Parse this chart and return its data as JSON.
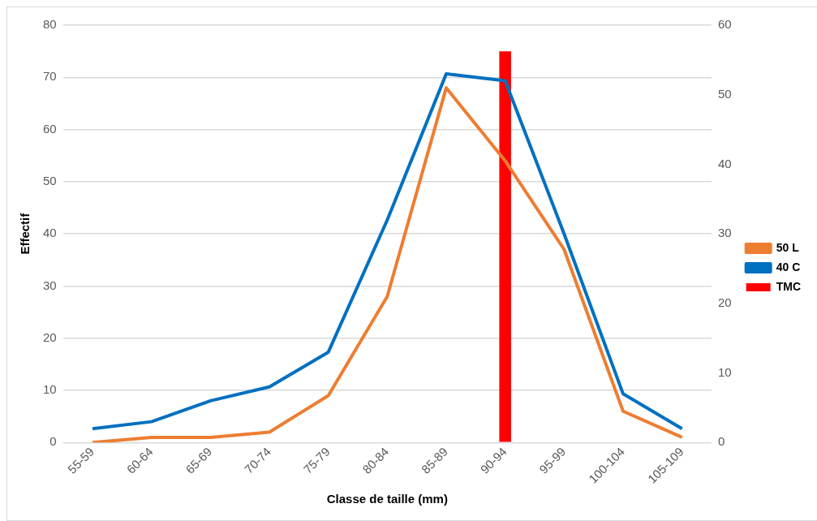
{
  "chart_data": {
    "type": "line",
    "xlabel": "Classe de taille (mm)",
    "ylabel": "Effectif",
    "categories": [
      "55-59",
      "60-64",
      "65-69",
      "70-74",
      "75-79",
      "80-84",
      "85-89",
      "90-94",
      "95-99",
      "100-104",
      "105-109"
    ],
    "series": [
      {
        "name": "TMC",
        "type": "bar",
        "color": "#ff0000",
        "values": [
          null,
          null,
          null,
          null,
          null,
          null,
          null,
          75,
          null,
          null,
          null
        ]
      },
      {
        "name": "50 L",
        "color": "#ed7d31",
        "values": [
          0,
          1,
          1,
          2,
          9,
          28,
          68,
          54,
          37,
          6,
          1
        ]
      },
      {
        "name": "40 C",
        "color": "#0070c0",
        "axis": "y2",
        "values": [
          2,
          3,
          6,
          8,
          13,
          32,
          53,
          52,
          30,
          7,
          2
        ]
      }
    ],
    "ylim": [
      0,
      80
    ],
    "yticks": [
      0,
      10,
      20,
      30,
      40,
      50,
      60,
      70,
      80
    ],
    "y2lim": [
      0,
      60
    ],
    "y2ticks": [
      0,
      10,
      20,
      30,
      40,
      50,
      60
    ],
    "grid": "y",
    "legend": "right",
    "marker": "none",
    "line_style": "solid"
  }
}
